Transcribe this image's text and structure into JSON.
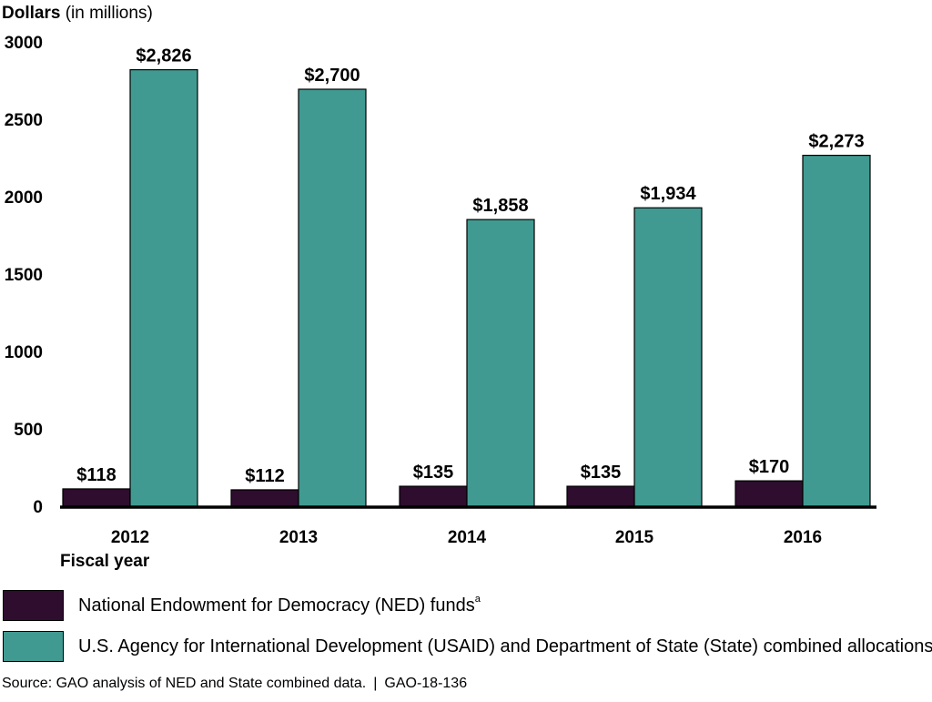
{
  "chart_data": {
    "type": "bar",
    "ylabel": "Dollars",
    "ylabel_unit": "(in millions)",
    "xlabel": "Fiscal year",
    "categories": [
      "2012",
      "2013",
      "2014",
      "2015",
      "2016"
    ],
    "ylim": [
      0,
      3000
    ],
    "yticks": [
      "0",
      "500",
      "1000",
      "1500",
      "2000",
      "2500",
      "3000"
    ],
    "grid": false,
    "series": [
      {
        "name": "National Endowment for Democracy (NED) funds",
        "footnote": "a",
        "color": "#2e0d2e",
        "values": [
          118,
          112,
          135,
          135,
          170
        ],
        "data_labels": [
          "$118",
          "$112",
          "$135",
          "$135",
          "$170"
        ]
      },
      {
        "name": "U.S. Agency for International Development (USAID) and Department of State (State) combined allocations",
        "color": "#419a91",
        "values": [
          2826,
          2700,
          1858,
          1934,
          2273
        ],
        "data_labels": [
          "$2,826",
          "$2,700",
          "$1,858",
          "$1,934",
          "$2,273"
        ]
      }
    ],
    "legend_placement": "bottom-left"
  },
  "source": {
    "text": "Source: GAO analysis of NED and State combined data.",
    "separator": "|",
    "id": "GAO-18-136"
  }
}
